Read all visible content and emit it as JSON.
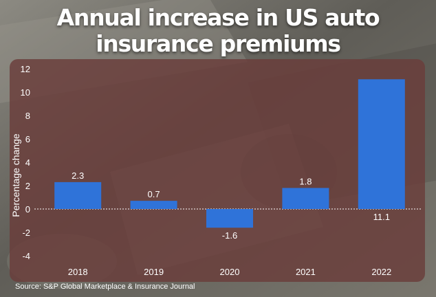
{
  "title_lines": [
    "Annual increase in US auto",
    "insurance premiums"
  ],
  "source": "Source: S&P Global Marketplace & Insurance Journal",
  "colors": {
    "bar": "#2f73d9",
    "panel": "#6a3d3b",
    "text": "#ffffff",
    "background": "#6d6a62"
  },
  "chart_data": {
    "type": "bar",
    "categories": [
      "2018",
      "2019",
      "2020",
      "2021",
      "2022"
    ],
    "values": [
      2.3,
      0.7,
      -1.6,
      1.8,
      11.1
    ],
    "value_labels": [
      "2.3",
      "0.7",
      "-1.6",
      "1.8",
      "11.1"
    ],
    "ylabel": "Percentage change",
    "ylim": [
      -4,
      12
    ],
    "yticks": [
      12,
      10,
      8,
      6,
      4,
      2,
      0,
      -2,
      -4
    ],
    "ytick_labels": [
      "12",
      "10",
      "8",
      "6",
      "4",
      "2",
      "0",
      "-2",
      "-4"
    ],
    "zero_line": "dotted",
    "grid": false
  }
}
